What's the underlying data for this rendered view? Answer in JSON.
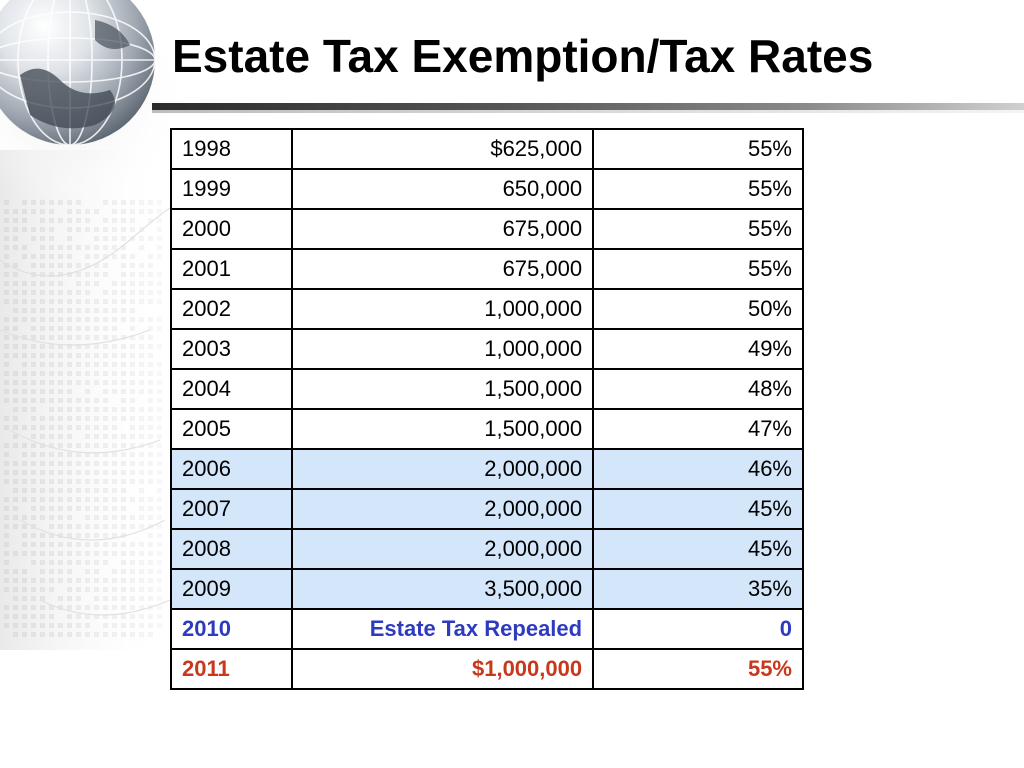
{
  "slide": {
    "title": "Estate Tax Exemption/Tax Rates"
  },
  "theme": {
    "highlight_row_color": "#d4e6f9",
    "repealed_text_color": "#2e3bbf",
    "future_text_color": "#c8381b",
    "background_graphic": "globe-icon"
  },
  "table": {
    "rows": [
      {
        "year": "1998",
        "exemption": "$625,000",
        "rate": "55%",
        "style": "normal"
      },
      {
        "year": "1999",
        "exemption": "650,000",
        "rate": "55%",
        "style": "normal"
      },
      {
        "year": "2000",
        "exemption": "675,000",
        "rate": "55%",
        "style": "normal"
      },
      {
        "year": "2001",
        "exemption": "675,000",
        "rate": "55%",
        "style": "normal"
      },
      {
        "year": "2002",
        "exemption": "1,000,000",
        "rate": "50%",
        "style": "normal"
      },
      {
        "year": "2003",
        "exemption": "1,000,000",
        "rate": "49%",
        "style": "normal"
      },
      {
        "year": "2004",
        "exemption": "1,500,000",
        "rate": "48%",
        "style": "normal"
      },
      {
        "year": "2005",
        "exemption": "1,500,000",
        "rate": "47%",
        "style": "normal"
      },
      {
        "year": "2006",
        "exemption": "2,000,000",
        "rate": "46%",
        "style": "highlight"
      },
      {
        "year": "2007",
        "exemption": "2,000,000",
        "rate": "45%",
        "style": "highlight"
      },
      {
        "year": "2008",
        "exemption": "2,000,000",
        "rate": "45%",
        "style": "highlight"
      },
      {
        "year": "2009",
        "exemption": "3,500,000",
        "rate": "35%",
        "style": "highlight"
      },
      {
        "year": "2010",
        "exemption": "Estate Tax Repealed",
        "rate": "0",
        "style": "repealed"
      },
      {
        "year": "2011",
        "exemption": "$1,000,000",
        "rate": "55%",
        "style": "future"
      }
    ]
  }
}
